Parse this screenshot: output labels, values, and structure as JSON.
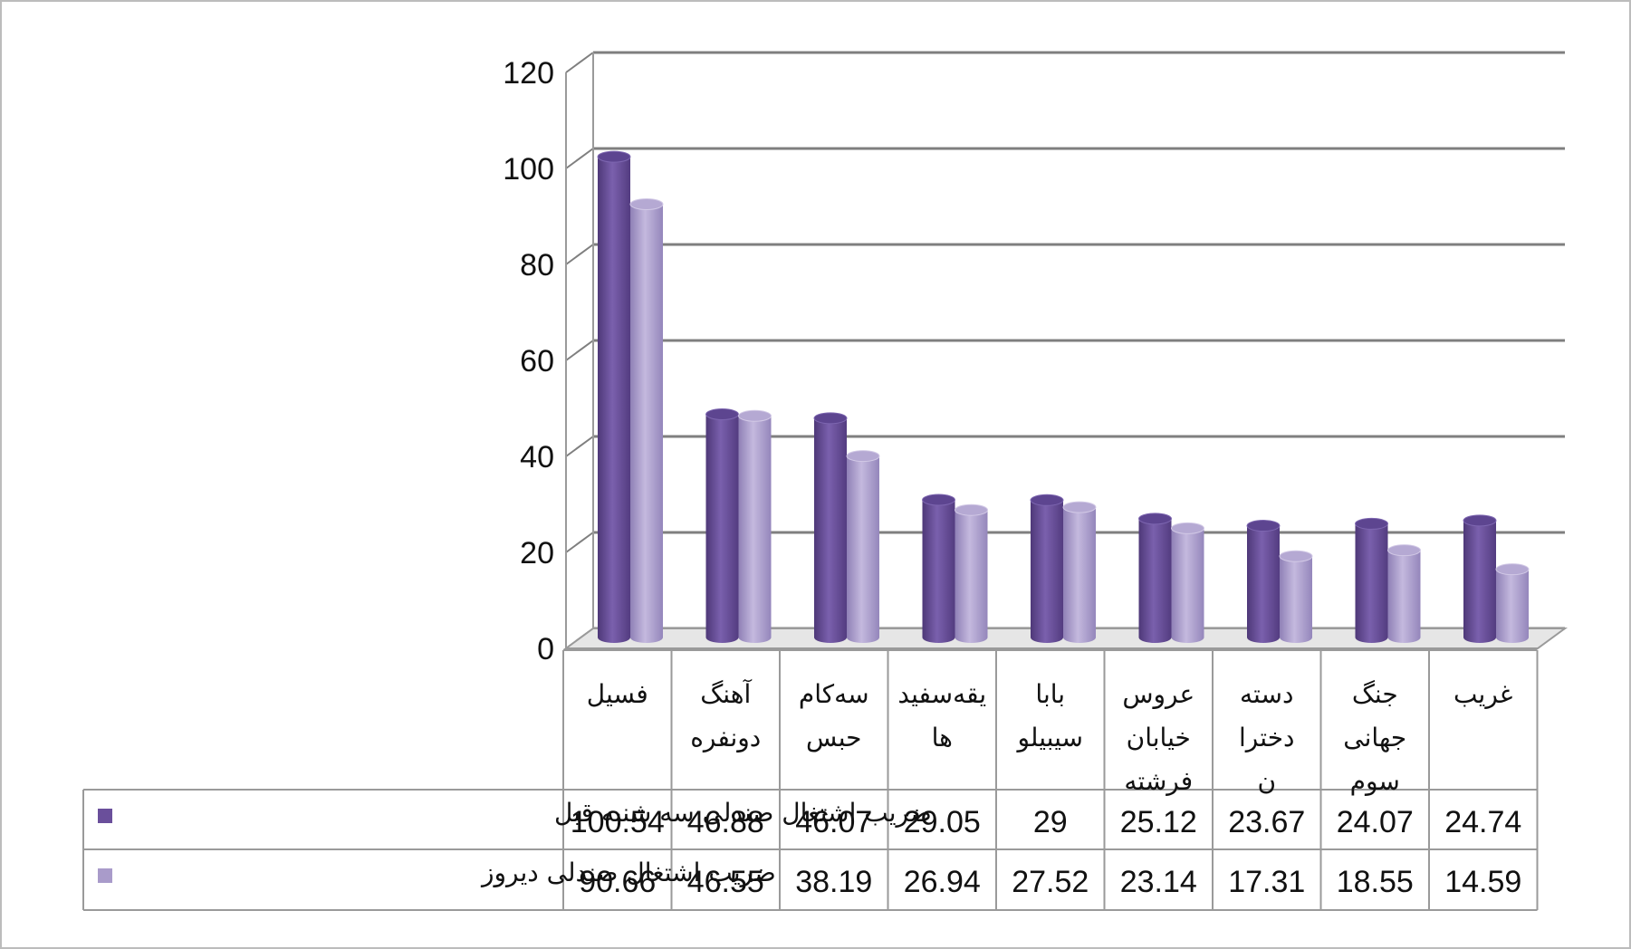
{
  "chart_data": {
    "type": "bar",
    "title": "",
    "xlabel": "",
    "ylabel": "",
    "ylim": [
      0,
      120
    ],
    "yticks": [
      0,
      20,
      40,
      60,
      80,
      100,
      120
    ],
    "grid": true,
    "legend": "data-table-left",
    "categories": [
      [
        "فسیل"
      ],
      [
        "آهنگ",
        "دونفره"
      ],
      [
        "سه‌کام",
        "حبس"
      ],
      [
        "یقه‌سفید",
        "ها"
      ],
      [
        "بابا",
        "سیبیلو"
      ],
      [
        "عروس",
        "خیابان",
        "فرشته"
      ],
      [
        "دسته",
        "دخترا",
        "ن"
      ],
      [
        "جنگ",
        "جهانی",
        "سوم"
      ],
      [
        "غریب"
      ]
    ],
    "series": [
      {
        "name": "ضریب اشتغال صندلی سه شنبه قبل",
        "color": "#6a4f9b",
        "values": [
          100.54,
          46.88,
          46.07,
          29.05,
          29,
          25.12,
          23.67,
          24.07,
          24.74
        ]
      },
      {
        "name": "ضریب اشتغال صندلی دیروز",
        "color": "#a99bca",
        "values": [
          90.66,
          46.55,
          38.19,
          26.94,
          27.52,
          23.14,
          17.31,
          18.55,
          14.59
        ]
      }
    ]
  }
}
